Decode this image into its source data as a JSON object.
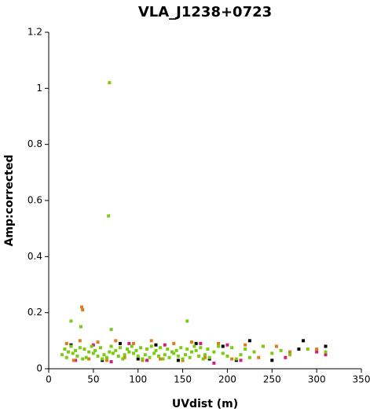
{
  "chart_data": {
    "type": "scatter",
    "title": "VLA_J1238+0723",
    "x_label": "UVdist (m)",
    "y_label": "Amp:corrected",
    "xlim": [
      0,
      350
    ],
    "xticks": [
      0,
      50,
      100,
      150,
      200,
      250,
      300,
      350
    ],
    "ylim": [
      0,
      1.2
    ],
    "yticks": [
      0,
      0.2,
      0.4,
      0.6,
      0.8,
      1,
      1.2
    ],
    "grid": false,
    "series": [
      {
        "color": "#000000",
        "x": [
          25,
          60,
          80,
          100,
          120,
          145,
          165,
          180,
          195,
          210,
          225,
          250,
          285,
          310,
          280
        ],
        "values": [
          0.085,
          0.03,
          0.09,
          0.035,
          0.085,
          0.03,
          0.09,
          0.035,
          0.08,
          0.03,
          0.1,
          0.03,
          0.1,
          0.08,
          0.07
        ]
      },
      {
        "color": "#d0207a",
        "x": [
          30,
          50,
          70,
          90,
          110,
          130,
          150,
          170,
          185,
          200,
          215,
          240,
          265,
          300,
          310
        ],
        "values": [
          0.03,
          0.085,
          0.025,
          0.09,
          0.03,
          0.085,
          0.03,
          0.09,
          0.02,
          0.085,
          0.03,
          0.08,
          0.04,
          0.06,
          0.05
        ]
      },
      {
        "color": "#e07b1a",
        "x": [
          20,
          28,
          35,
          37,
          45,
          55,
          65,
          75,
          85,
          95,
          105,
          115,
          125,
          140,
          150,
          160,
          175,
          190,
          205,
          220,
          235,
          255,
          270,
          300,
          38
        ],
        "values": [
          0.09,
          0.03,
          0.1,
          0.22,
          0.035,
          0.095,
          0.03,
          0.1,
          0.04,
          0.09,
          0.03,
          0.1,
          0.035,
          0.09,
          0.03,
          0.095,
          0.04,
          0.09,
          0.035,
          0.085,
          0.04,
          0.08,
          0.06,
          0.07,
          0.21
        ]
      },
      {
        "color": "#7acc10",
        "x": [
          15,
          18,
          20,
          22,
          25,
          27,
          30,
          32,
          35,
          38,
          40,
          42,
          45,
          48,
          50,
          52,
          55,
          58,
          60,
          62,
          65,
          68,
          70,
          72,
          75,
          78,
          80,
          83,
          85,
          88,
          90,
          93,
          95,
          98,
          100,
          103,
          105,
          108,
          110,
          113,
          115,
          118,
          120,
          123,
          125,
          128,
          130,
          133,
          135,
          138,
          140,
          143,
          145,
          148,
          150,
          153,
          155,
          158,
          160,
          163,
          165,
          168,
          170,
          173,
          175,
          178,
          180,
          185,
          190,
          195,
          200,
          205,
          210,
          215,
          220,
          225,
          230,
          240,
          250,
          260,
          270,
          290,
          310,
          68,
          67,
          25,
          36,
          155,
          70
        ],
        "values": [
          0.05,
          0.07,
          0.04,
          0.06,
          0.08,
          0.055,
          0.065,
          0.045,
          0.075,
          0.035,
          0.07,
          0.04,
          0.06,
          0.08,
          0.055,
          0.065,
          0.045,
          0.075,
          0.035,
          0.05,
          0.04,
          0.06,
          0.08,
          0.055,
          0.065,
          0.045,
          0.075,
          0.035,
          0.05,
          0.07,
          0.06,
          0.08,
          0.055,
          0.065,
          0.045,
          0.075,
          0.035,
          0.05,
          0.07,
          0.04,
          0.08,
          0.055,
          0.065,
          0.045,
          0.075,
          0.035,
          0.05,
          0.07,
          0.04,
          0.06,
          0.055,
          0.065,
          0.045,
          0.075,
          0.035,
          0.05,
          0.07,
          0.04,
          0.06,
          0.08,
          0.065,
          0.045,
          0.075,
          0.035,
          0.05,
          0.07,
          0.04,
          0.06,
          0.08,
          0.055,
          0.045,
          0.075,
          0.035,
          0.05,
          0.07,
          0.04,
          0.06,
          0.08,
          0.055,
          0.065,
          0.05,
          0.07,
          0.06,
          1.02,
          0.545,
          0.17,
          0.15,
          0.17,
          0.14
        ]
      }
    ]
  }
}
